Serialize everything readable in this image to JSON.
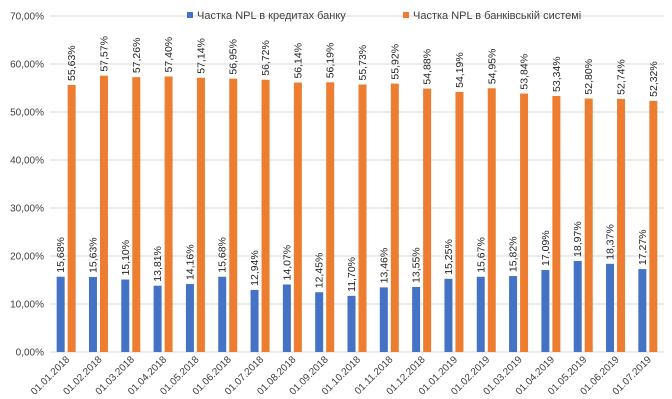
{
  "chart_data": {
    "type": "bar",
    "categories": [
      "01.01.2018",
      "01.02.2018",
      "01.03.2018",
      "01.04.2018",
      "01.05.2018",
      "01.06.2018",
      "01.07.2018",
      "01.08.2018",
      "01.09.2018",
      "01.10.2018",
      "01.11.2018",
      "01.12.2018",
      "01.01.2019",
      "01.02.2019",
      "01.03.2019",
      "01.04.2019",
      "01.05.2019",
      "01.06.2019",
      "01.07.2019"
    ],
    "series": [
      {
        "name": "Частка NPL в кредитах банку",
        "color": "#4472C4",
        "values": [
          15.68,
          15.63,
          15.1,
          13.81,
          14.16,
          15.68,
          12.94,
          14.07,
          12.45,
          11.7,
          13.46,
          13.55,
          15.25,
          15.67,
          15.82,
          17.09,
          18.97,
          18.37,
          17.27
        ],
        "labels": [
          "15,68%",
          "15,63%",
          "15,10%",
          "13,81%",
          "14,16%",
          "15,68%",
          "12,94%",
          "14,07%",
          "12,45%",
          "11,70%",
          "13,46%",
          "13,55%",
          "15,25%",
          "15,67%",
          "15,82%",
          "17,09%",
          "18,97%",
          "18,37%",
          "17,27%"
        ]
      },
      {
        "name": "Частка NPL в банківській системі",
        "color": "#ED7D31",
        "values": [
          55.63,
          57.57,
          57.26,
          57.4,
          57.14,
          56.95,
          56.72,
          56.14,
          56.19,
          55.73,
          55.92,
          54.88,
          54.19,
          54.95,
          53.84,
          53.34,
          52.8,
          52.74,
          52.32
        ],
        "labels": [
          "55,63%",
          "57,57%",
          "57,26%",
          "57,40%",
          "57,14%",
          "56,95%",
          "56,72%",
          "56,14%",
          "56,19%",
          "55,73%",
          "55,92%",
          "54,88%",
          "54,19%",
          "54,95%",
          "53,84%",
          "53,34%",
          "52,80%",
          "52,74%",
          "52,32%"
        ]
      }
    ],
    "ylim": [
      0,
      70
    ],
    "yticks": [
      "0,00%",
      "10,00%",
      "20,00%",
      "30,00%",
      "40,00%",
      "50,00%",
      "60,00%",
      "70,00%"
    ],
    "grid": true,
    "legend": "top"
  }
}
